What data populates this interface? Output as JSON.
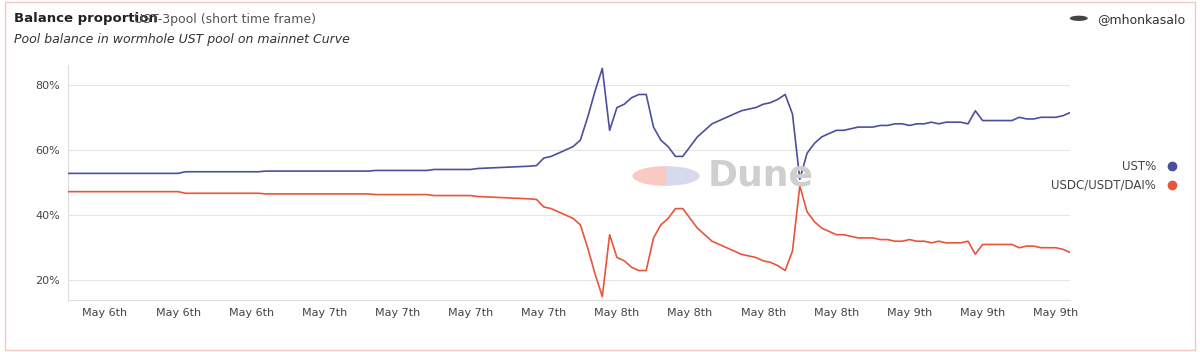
{
  "chart_data": {
    "type": "line",
    "title": "Balance proportion",
    "subtitle": "UST-3pool (short time frame)",
    "description": "Pool balance in wormhole UST pool on mainnet Curve",
    "author": "@mhonkasalo",
    "watermark": "Dune",
    "categories": [
      null,
      null,
      null,
      null,
      null,
      "May 6th",
      null,
      null,
      null,
      null,
      null,
      null,
      null,
      null,
      null,
      "May 6th",
      null,
      null,
      null,
      null,
      null,
      null,
      null,
      null,
      null,
      "May 6th",
      null,
      null,
      null,
      null,
      null,
      null,
      null,
      null,
      null,
      "May 7th",
      null,
      null,
      null,
      null,
      null,
      null,
      null,
      null,
      null,
      "May 7th",
      null,
      null,
      null,
      null,
      null,
      null,
      null,
      null,
      null,
      "May 7th",
      null,
      null,
      null,
      null,
      null,
      null,
      null,
      null,
      null,
      "May 7th",
      null,
      null,
      null,
      null,
      null,
      null,
      null,
      null,
      null,
      "May 8th",
      null,
      null,
      null,
      null,
      null,
      null,
      null,
      null,
      null,
      "May 8th",
      null,
      null,
      null,
      null,
      null,
      null,
      null,
      null,
      null,
      "May 8th",
      null,
      null,
      null,
      null,
      null,
      null,
      null,
      null,
      null,
      "May 8th",
      null,
      null,
      null,
      null,
      null,
      null,
      null,
      null,
      null,
      "May 9th",
      null,
      null,
      null,
      null,
      null,
      null,
      null,
      null,
      null,
      "May 9th",
      null,
      null,
      null,
      null,
      null,
      null,
      null,
      null,
      null,
      "May 9th",
      null,
      null
    ],
    "series": [
      {
        "name": "UST%",
        "color": "#4c4f9e",
        "values": [
          52.8,
          52.8,
          52.8,
          52.8,
          52.8,
          52.8,
          52.8,
          52.8,
          52.8,
          52.8,
          52.8,
          52.8,
          52.8,
          52.8,
          52.8,
          52.8,
          53.3,
          53.3,
          53.3,
          53.3,
          53.3,
          53.3,
          53.3,
          53.3,
          53.3,
          53.3,
          53.3,
          53.5,
          53.5,
          53.5,
          53.5,
          53.5,
          53.5,
          53.5,
          53.5,
          53.5,
          53.5,
          53.5,
          53.5,
          53.5,
          53.5,
          53.5,
          53.7,
          53.7,
          53.7,
          53.7,
          53.7,
          53.7,
          53.7,
          53.7,
          54.0,
          54.0,
          54.0,
          54.0,
          54.0,
          54.0,
          54.3,
          54.4,
          54.5,
          54.6,
          54.7,
          54.8,
          54.9,
          55.0,
          55.2,
          57.5,
          58,
          59,
          60,
          61,
          63,
          70,
          78,
          85,
          66,
          73,
          74,
          76,
          77,
          77,
          67,
          63,
          61,
          58,
          58,
          61,
          64,
          66,
          68,
          69,
          70,
          71,
          72,
          72.5,
          73,
          74,
          74.5,
          75.5,
          77,
          71,
          51,
          59,
          62,
          64,
          65,
          66,
          66,
          66.5,
          67,
          67,
          67,
          67.5,
          67.5,
          68,
          68,
          67.5,
          68,
          68,
          68.5,
          68,
          68.5,
          68.5,
          68.5,
          68,
          72,
          69,
          69,
          69,
          69,
          69,
          70,
          69.5,
          69.5,
          70,
          70,
          70,
          70.5,
          71.5
        ]
      },
      {
        "name": "USDC/USDT/DAI%",
        "color": "#e8553a",
        "values": [
          47.2,
          47.2,
          47.2,
          47.2,
          47.2,
          47.2,
          47.2,
          47.2,
          47.2,
          47.2,
          47.2,
          47.2,
          47.2,
          47.2,
          47.2,
          47.2,
          46.7,
          46.7,
          46.7,
          46.7,
          46.7,
          46.7,
          46.7,
          46.7,
          46.7,
          46.7,
          46.7,
          46.5,
          46.5,
          46.5,
          46.5,
          46.5,
          46.5,
          46.5,
          46.5,
          46.5,
          46.5,
          46.5,
          46.5,
          46.5,
          46.5,
          46.5,
          46.3,
          46.3,
          46.3,
          46.3,
          46.3,
          46.3,
          46.3,
          46.3,
          46.0,
          46.0,
          46.0,
          46.0,
          46.0,
          46.0,
          45.7,
          45.6,
          45.5,
          45.4,
          45.3,
          45.2,
          45.1,
          45.0,
          44.8,
          42.5,
          42,
          41,
          40,
          39,
          37,
          30,
          22,
          15,
          34,
          27,
          26,
          24,
          23,
          23,
          33,
          37,
          39,
          42,
          42,
          39,
          36,
          34,
          32,
          31,
          30,
          29,
          28,
          27.5,
          27,
          26,
          25.5,
          24.5,
          23,
          29,
          49,
          41,
          38,
          36,
          35,
          34,
          34,
          33.5,
          33,
          33,
          33,
          32.5,
          32.5,
          32,
          32,
          32.5,
          32,
          32,
          31.5,
          32,
          31.5,
          31.5,
          31.5,
          32,
          28,
          31,
          31,
          31,
          31,
          31,
          30,
          30.5,
          30.5,
          30,
          30,
          30,
          29.5,
          28.5
        ]
      }
    ],
    "ylim": [
      14,
      86
    ],
    "yticks": [
      {
        "value": 20,
        "label": "20%"
      },
      {
        "value": 40,
        "label": "40%"
      },
      {
        "value": 60,
        "label": "60%"
      },
      {
        "value": 80,
        "label": "80%"
      }
    ],
    "grid": true,
    "legend": "right"
  }
}
